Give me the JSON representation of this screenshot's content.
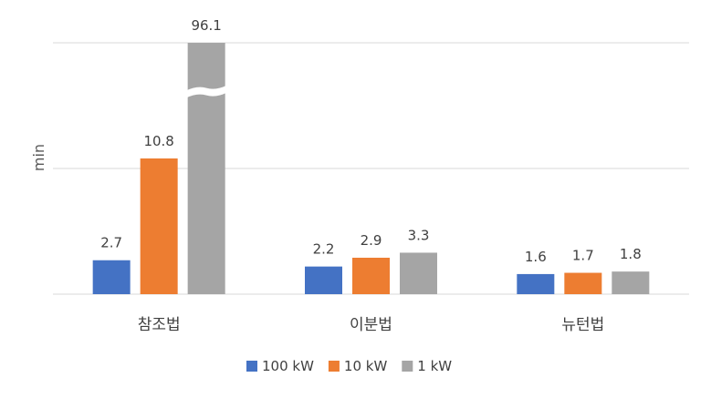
{
  "chart_data": {
    "type": "bar",
    "categories": [
      "참조법",
      "이분법",
      "뉴턴법"
    ],
    "series": [
      {
        "name": "100 kW",
        "values": [
          2.7,
          2.2,
          1.6
        ],
        "color": "#4472C4"
      },
      {
        "name": "10 kW",
        "values": [
          10.8,
          2.9,
          1.7
        ],
        "color": "#ED7D31"
      },
      {
        "name": "1 kW",
        "values": [
          96.1,
          3.3,
          1.8
        ],
        "color": "#A5A5A5"
      }
    ],
    "ylabel": "min",
    "ylim": [
      0,
      20
    ],
    "axis_break": true,
    "grid": true,
    "legend": "bottom-center"
  }
}
